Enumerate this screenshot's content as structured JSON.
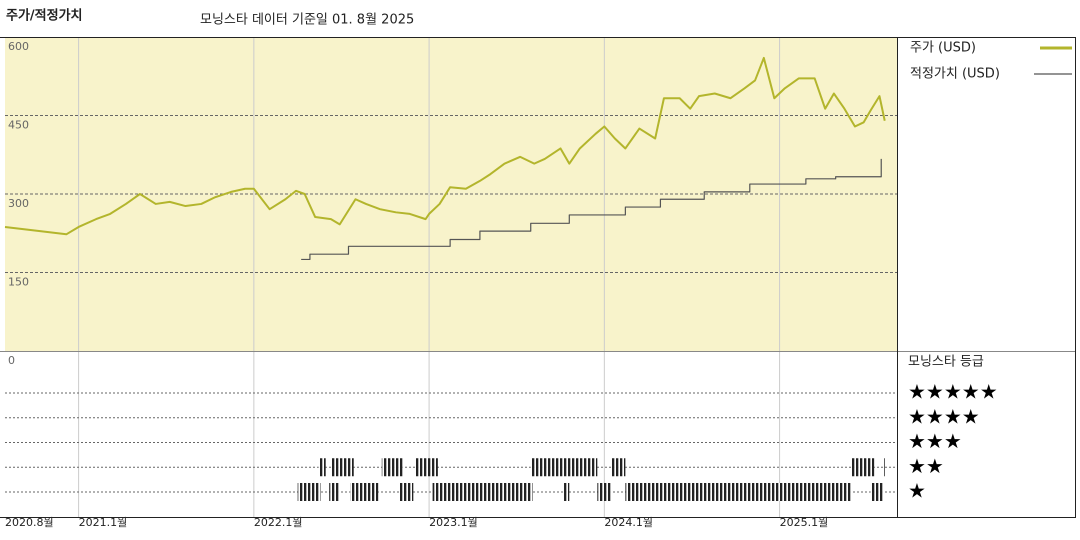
{
  "chart_data": {
    "type": "line",
    "title": "주가/적정가치",
    "subtitle": "모닝스타 데이터 기준일 01. 8월 2025",
    "xlim": [
      2020.58,
      2025.67
    ],
    "xticks": [
      {
        "value": 2020.58,
        "label": "2020.8월"
      },
      {
        "value": 2021,
        "label": "2021.1월"
      },
      {
        "value": 2022,
        "label": "2022.1월"
      },
      {
        "value": 2023,
        "label": "2023.1월"
      },
      {
        "value": 2024,
        "label": "2024.1월"
      },
      {
        "value": 2025,
        "label": "2025.1월"
      }
    ],
    "ylim": [
      0,
      600
    ],
    "yticks": [
      0,
      150,
      300,
      450,
      600
    ],
    "grid": true,
    "series": [
      {
        "name": "주가 (USD)",
        "color": "#b3b52c",
        "step": false,
        "x": [
          2020.58,
          2020.78,
          2020.93,
          2021.0,
          2021.1,
          2021.18,
          2021.27,
          2021.35,
          2021.44,
          2021.52,
          2021.61,
          2021.7,
          2021.78,
          2021.87,
          2021.95,
          2022.0,
          2022.09,
          2022.18,
          2022.24,
          2022.29,
          2022.35,
          2022.44,
          2022.49,
          2022.58,
          2022.64,
          2022.72,
          2022.81,
          2022.89,
          2022.98,
          2023.0,
          2023.06,
          2023.12,
          2023.21,
          2023.29,
          2023.35,
          2023.43,
          2023.52,
          2023.6,
          2023.66,
          2023.75,
          2023.8,
          2023.86,
          2023.95,
          2024.0,
          2024.06,
          2024.12,
          2024.2,
          2024.29,
          2024.34,
          2024.43,
          2024.49,
          2024.54,
          2024.63,
          2024.72,
          2024.8,
          2024.86,
          2024.91,
          2024.97,
          2025.03,
          2025.11,
          2025.2,
          2025.26,
          2025.31,
          2025.37,
          2025.43,
          2025.48,
          2025.52,
          2025.57,
          2025.6
        ],
        "values": [
          237,
          229,
          223,
          237,
          252,
          262,
          281,
          300,
          281,
          285,
          277,
          281,
          294,
          304,
          310,
          310,
          271,
          290,
          306,
          300,
          256,
          252,
          242,
          290,
          281,
          271,
          265,
          262,
          252,
          262,
          281,
          313,
          310,
          325,
          338,
          358,
          371,
          358,
          367,
          387,
          358,
          387,
          415,
          429,
          406,
          387,
          425,
          406,
          483,
          483,
          463,
          487,
          492,
          483,
          502,
          517,
          560,
          483,
          502,
          521,
          521,
          463,
          492,
          463,
          429,
          437,
          460,
          487,
          440
        ]
      },
      {
        "name": "적정가치 (USD)",
        "color": "#555555",
        "step": true,
        "x": [
          2022.27,
          2022.32,
          2022.54,
          2023.12,
          2023.29,
          2023.58,
          2023.8,
          2024.12,
          2024.32,
          2024.57,
          2024.83,
          2025.15,
          2025.32,
          2025.58
        ],
        "values": [
          175,
          185,
          200,
          213,
          229,
          244,
          260,
          275,
          290,
          304,
          319,
          329,
          333,
          367
        ]
      }
    ],
    "rating_title": "모닝스타 등급",
    "rating_levels": [
      {
        "label": "★★★★★",
        "stars": 5
      },
      {
        "label": "★★★★",
        "stars": 4
      },
      {
        "label": "★★★",
        "stars": 3
      },
      {
        "label": "★★",
        "stars": 2
      },
      {
        "label": "★",
        "stars": 1
      }
    ],
    "rating_periods": [
      {
        "stars": 2,
        "start": 2022.37,
        "end": 2022.41
      },
      {
        "stars": 2,
        "start": 2022.44,
        "end": 2022.57
      },
      {
        "stars": 2,
        "start": 2022.73,
        "end": 2022.85
      },
      {
        "stars": 2,
        "start": 2022.92,
        "end": 2023.05
      },
      {
        "stars": 2,
        "start": 2023.58,
        "end": 2023.96
      },
      {
        "stars": 2,
        "start": 2024.04,
        "end": 2024.12
      },
      {
        "stars": 2,
        "start": 2025.41,
        "end": 2025.54
      },
      {
        "stars": 2,
        "start": 2025.59,
        "end": 2025.6
      },
      {
        "stars": 1,
        "start": 2022.25,
        "end": 2022.38
      },
      {
        "stars": 1,
        "start": 2022.43,
        "end": 2022.49
      },
      {
        "stars": 1,
        "start": 2022.55,
        "end": 2022.71
      },
      {
        "stars": 1,
        "start": 2022.83,
        "end": 2022.91
      },
      {
        "stars": 1,
        "start": 2023.02,
        "end": 2023.59
      },
      {
        "stars": 1,
        "start": 2023.77,
        "end": 2023.8
      },
      {
        "stars": 1,
        "start": 2023.96,
        "end": 2024.04
      },
      {
        "stars": 1,
        "start": 2024.12,
        "end": 2025.41
      },
      {
        "stars": 1,
        "start": 2025.52,
        "end": 2025.59
      }
    ]
  }
}
